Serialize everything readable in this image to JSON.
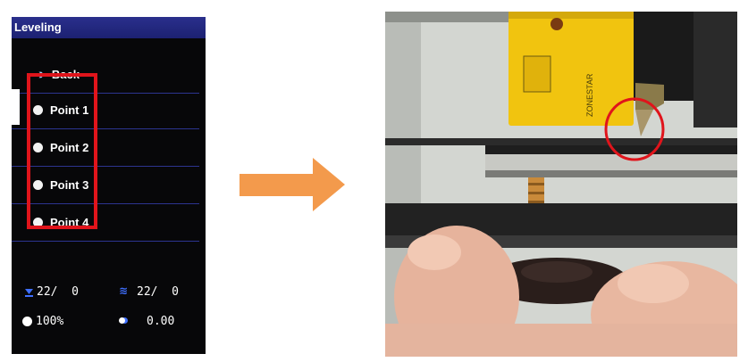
{
  "screen": {
    "title": "Leveling",
    "back_label": "Back",
    "points": [
      {
        "label": "Point 1"
      },
      {
        "label": "Point 2"
      },
      {
        "label": "Point 3"
      },
      {
        "label": "Point 4"
      }
    ],
    "status": {
      "bed_temp": "22/  0",
      "heat_temp": "22/  0",
      "fan_percent": "100%",
      "z_offset": "0.00"
    }
  },
  "photo": {
    "sensor_brand": "ZONESTAR"
  },
  "colors": {
    "title_bar": "#2a2f8c",
    "highlight_box": "#e0141b",
    "arrow": "#f39a4c",
    "sensor_yellow": "#f1c40f"
  }
}
